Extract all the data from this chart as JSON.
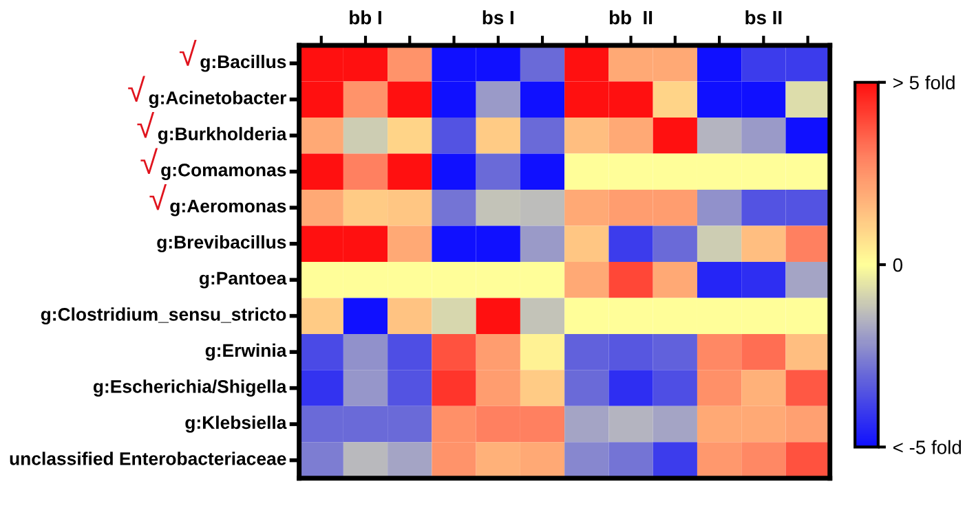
{
  "chart_data": {
    "type": "heatmap",
    "categories": [
      null,
      "bb I",
      null,
      null,
      "bs I",
      null,
      null,
      "bb  II",
      null,
      null,
      "bs II",
      null
    ],
    "y_categories": [
      "g:Bacillus",
      "g:Acinetobacter",
      "g:Burkholderia",
      "g:Comamonas",
      "g:Aeromonas",
      "g:Brevibacillus",
      "g:Pantoea",
      "g:Clostridium_sensu_stricto",
      "g:Erwinia",
      "g:Escherichia/Shigella",
      "g:Klebsiella",
      "unclassified Enterobacteriaceae"
    ],
    "cells": [
      [
        5,
        5,
        2.5,
        -5,
        -5,
        -3,
        5,
        2,
        2,
        -5,
        -4,
        -4
      ],
      [
        5,
        2.5,
        5,
        -5,
        -2,
        -5,
        5,
        5,
        1,
        -5,
        -5,
        -0.7
      ],
      [
        2,
        -1,
        1,
        -3.5,
        1.2,
        -3,
        1.5,
        2,
        5,
        -1.5,
        -2,
        -5
      ],
      [
        5,
        3,
        5,
        -5,
        -3,
        -5,
        0,
        0,
        0,
        0,
        0,
        0
      ],
      [
        2,
        1.2,
        1.3,
        -2.8,
        -1.2,
        -1.3,
        2,
        2.3,
        2.3,
        -2.2,
        -3.5,
        -3.5
      ],
      [
        5,
        5,
        2,
        -5,
        -5,
        -2,
        1.3,
        -4,
        -3,
        -1,
        1.5,
        3
      ],
      [
        0,
        0,
        0,
        0,
        0,
        0,
        2,
        4,
        2,
        -4.5,
        -4.3,
        -1.8
      ],
      [
        1.2,
        -5,
        1.4,
        -0.8,
        5,
        -1.2,
        0,
        0,
        0,
        0,
        0,
        0
      ],
      [
        -3.7,
        -2.2,
        -3.6,
        3.8,
        2.3,
        0.3,
        -3.2,
        -3.4,
        -3.2,
        2.8,
        3.3,
        1.5
      ],
      [
        -4.2,
        -2.1,
        -3.5,
        4.3,
        2.3,
        1.2,
        -3,
        -4.3,
        -3.6,
        2.6,
        1.8,
        3.7
      ],
      [
        -3,
        -3,
        -3,
        2.6,
        3,
        3,
        -1.8,
        -1.5,
        -1.8,
        2,
        2,
        2.2
      ],
      [
        -2.6,
        -1.4,
        -1.8,
        2.5,
        1.8,
        2,
        -2.4,
        -2.8,
        -4,
        2.4,
        2.8,
        3.8
      ]
    ],
    "clim": [
      -5,
      5
    ],
    "cticks": [
      {
        "value": 5,
        "label": "> 5 fold"
      },
      0,
      {
        "value": -5,
        "label": "< -5 fold"
      }
    ],
    "annotations": [
      "√",
      "√",
      "√",
      "√",
      "√"
    ]
  }
}
